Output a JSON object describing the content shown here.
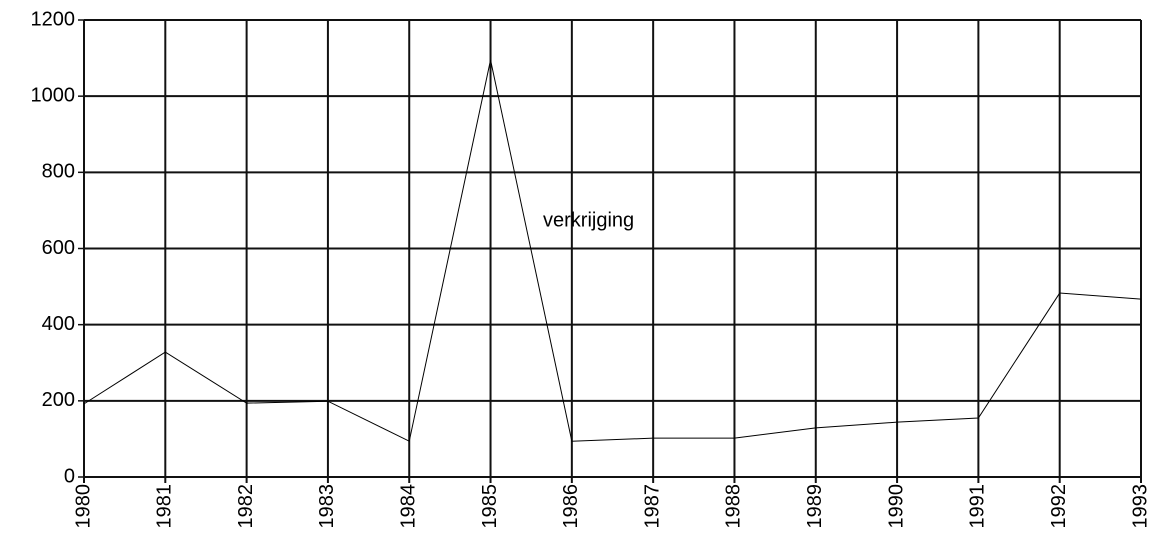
{
  "chart_data": {
    "type": "line",
    "categories": [
      "1980",
      "1981",
      "1982",
      "1983",
      "1984",
      "1985",
      "1986",
      "1987",
      "1988",
      "1989",
      "1990",
      "1991",
      "1992",
      "1993"
    ],
    "series": [
      {
        "name": "verkrijging",
        "color": "#000000",
        "values": [
          192,
          328,
          194,
          199,
          94,
          1095,
          94,
          102,
          102,
          129,
          144,
          155,
          483,
          467
        ]
      }
    ],
    "ylim": [
      0,
      1200
    ],
    "yticks": [
      0,
      200,
      400,
      600,
      800,
      1000,
      1200
    ],
    "grid": true
  }
}
